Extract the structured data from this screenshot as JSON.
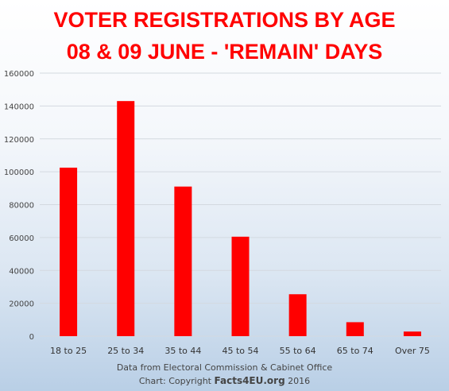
{
  "chart_data": {
    "type": "bar",
    "title": "VOTER REGISTRATIONS BY AGE",
    "subtitle": "08 & 09 JUNE - 'REMAIN' DAYS",
    "categories": [
      "18 to 25",
      "25 to 34",
      "35 to 44",
      "45 to 54",
      "55 to 64",
      "65 to 74",
      "Over 75"
    ],
    "values": [
      102500,
      143000,
      91000,
      60500,
      25500,
      8500,
      2800
    ],
    "ylim": [
      0,
      160000
    ],
    "yticks": [
      "0",
      "20000",
      "40000",
      "60000",
      "80000",
      "100000",
      "120000",
      "140000",
      "160000"
    ],
    "xlabel": "",
    "ylabel": "",
    "grid": true,
    "bar_color": "#ff0000"
  },
  "credits": {
    "line1": "Data from Electoral Commission & Cabinet Office",
    "line2_prefix": "Chart: Copyright ",
    "line2_brand": "Facts4EU.org",
    "line2_suffix": " 2016"
  }
}
